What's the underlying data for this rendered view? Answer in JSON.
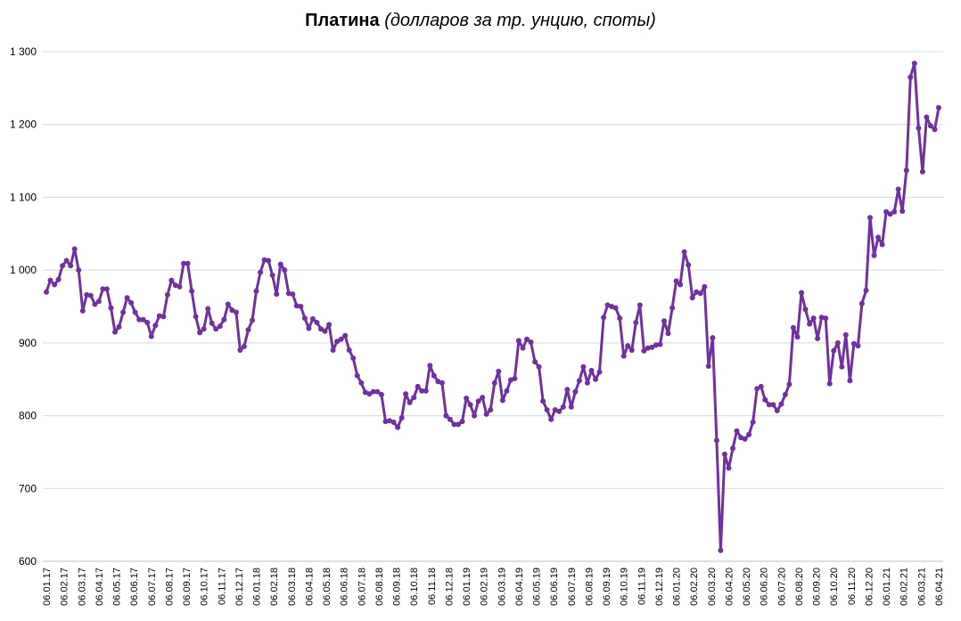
{
  "chart_data": {
    "type": "line",
    "title": "Платина",
    "subtitle": "(долларов за тр. унцию, споты)",
    "ylim": [
      600,
      1300
    ],
    "yticks": [
      "600",
      "700",
      "800",
      "900",
      "1 000",
      "1 100",
      "1 200",
      "1 300"
    ],
    "grid": "horizontal",
    "line_color": "#7030a0",
    "x_tick_labels": [
      "06.01.17",
      "06.02.17",
      "06.03.17",
      "06.04.17",
      "06.05.17",
      "06.06.17",
      "06.07.17",
      "06.08.17",
      "06.09.17",
      "06.10.17",
      "06.11.17",
      "06.12.17",
      "06.01.18",
      "06.02.18",
      "06.03.18",
      "06.04.18",
      "06.05.18",
      "06.06.18",
      "06.07.18",
      "06.08.18",
      "06.09.18",
      "06.10.18",
      "06.11.18",
      "06.12.18",
      "06.01.19",
      "06.02.19",
      "06.03.19",
      "06.04.19",
      "06.05.19",
      "06.06.19",
      "06.07.19",
      "06.08.19",
      "06.09.19",
      "06.10.19",
      "06.11.19",
      "06.12.19",
      "06.01.20",
      "06.02.20",
      "06.03.20",
      "06.04.20",
      "06.05.20",
      "06.06.20",
      "06.07.20",
      "06.08.20",
      "06.09.20",
      "06.10.20",
      "06.11.20",
      "06.12.20",
      "06.01.21",
      "06.02.21",
      "06.03.21",
      "06.04.21"
    ],
    "series": [
      {
        "values": [
          970,
          986,
          980,
          987,
          1006,
          1013,
          1006,
          1029,
          1000,
          944,
          966,
          965,
          953,
          957,
          974,
          974,
          948,
          915,
          922,
          942,
          962,
          955,
          942,
          932,
          932,
          928,
          909,
          924,
          937,
          936,
          966,
          986,
          979,
          977,
          1009,
          1009,
          971,
          936,
          914,
          919,
          947,
          927,
          919,
          923,
          932,
          953,
          945,
          942,
          890,
          895,
          918,
          931,
          971,
          997,
          1014,
          1013,
          993,
          967,
          1008,
          1000,
          968,
          967,
          951,
          950,
          934,
          920,
          933,
          928,
          919,
          916,
          925,
          890,
          902,
          905,
          910,
          890,
          879,
          855,
          845,
          832,
          830,
          833,
          833,
          829,
          792,
          793,
          791,
          784,
          797,
          830,
          818,
          825,
          840,
          834,
          834,
          869,
          855,
          847,
          845,
          800,
          795,
          788,
          788,
          792,
          824,
          815,
          800,
          820,
          825,
          802,
          808,
          845,
          861,
          821,
          834,
          849,
          851,
          903,
          893,
          905,
          901,
          874,
          867,
          820,
          808,
          795,
          808,
          806,
          812,
          836,
          812,
          833,
          848,
          867,
          845,
          862,
          850,
          860,
          935,
          952,
          950,
          948,
          934,
          882,
          896,
          890,
          928,
          952,
          889,
          893,
          894,
          897,
          898,
          930,
          913,
          948,
          985,
          980,
          1025,
          1007,
          962,
          970,
          968,
          977,
          868,
          907,
          766,
          615,
          747,
          728,
          755,
          779,
          770,
          768,
          774,
          791,
          837,
          840,
          822,
          815,
          815,
          807,
          816,
          829,
          843,
          921,
          908,
          969,
          946,
          926,
          934,
          906,
          935,
          934,
          844,
          889,
          900,
          867,
          911,
          848,
          899,
          896,
          954,
          972,
          1072,
          1020,
          1045,
          1035,
          1080,
          1077,
          1080,
          1111,
          1081,
          1137,
          1265,
          1284,
          1195,
          1135,
          1210,
          1198,
          1193,
          1223
        ]
      }
    ]
  }
}
